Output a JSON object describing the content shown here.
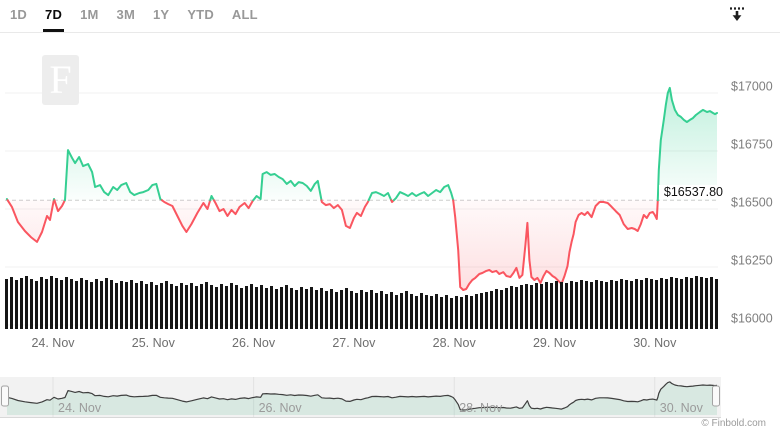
{
  "toolbar": {
    "ranges": [
      "1D",
      "7D",
      "1M",
      "3M",
      "1Y",
      "YTD",
      "ALL"
    ],
    "active_range": "7D",
    "active_index": 1
  },
  "branding": {
    "logo_letter": "F"
  },
  "footer": {
    "credit": "© Finbold.com"
  },
  "chart_data": {
    "type": "line",
    "current_price_label": "$16537.80",
    "threshold_price": 16537.8,
    "x_axis": {
      "tick_labels": [
        "24. Nov",
        "25. Nov",
        "26. Nov",
        "27. Nov",
        "28. Nov",
        "29. Nov",
        "30. Nov"
      ],
      "tick_positions_days": [
        0,
        1,
        2,
        3,
        4,
        5,
        6
      ],
      "range_days": [
        -0.48,
        6.63
      ]
    },
    "y_axis": {
      "tick_labels": [
        "$17000",
        "$16750",
        "$16500",
        "$16250",
        "$16000"
      ],
      "tick_values": [
        17000,
        16750,
        16500,
        16250,
        16000
      ],
      "range": [
        15980,
        17100
      ]
    },
    "series": {
      "name": "price",
      "points": [
        [
          -0.46,
          16543
        ],
        [
          -0.41,
          16509
        ],
        [
          -0.35,
          16444
        ],
        [
          -0.28,
          16405
        ],
        [
          -0.22,
          16379
        ],
        [
          -0.16,
          16358
        ],
        [
          -0.11,
          16401
        ],
        [
          -0.06,
          16470
        ],
        [
          -0.03,
          16453
        ],
        [
          0.01,
          16543
        ],
        [
          0.05,
          16491
        ],
        [
          0.09,
          16513
        ],
        [
          0.12,
          16539
        ],
        [
          0.15,
          16754
        ],
        [
          0.19,
          16720
        ],
        [
          0.22,
          16698
        ],
        [
          0.26,
          16724
        ],
        [
          0.3,
          16685
        ],
        [
          0.35,
          16694
        ],
        [
          0.39,
          16659
        ],
        [
          0.42,
          16595
        ],
        [
          0.47,
          16603
        ],
        [
          0.51,
          16573
        ],
        [
          0.55,
          16560
        ],
        [
          0.6,
          16595
        ],
        [
          0.64,
          16582
        ],
        [
          0.68,
          16603
        ],
        [
          0.73,
          16612
        ],
        [
          0.77,
          16573
        ],
        [
          0.81,
          16560
        ],
        [
          0.86,
          16569
        ],
        [
          0.9,
          16573
        ],
        [
          0.95,
          16582
        ],
        [
          0.99,
          16603
        ],
        [
          1.03,
          16608
        ],
        [
          1.07,
          16543
        ],
        [
          1.11,
          16530
        ],
        [
          1.15,
          16521
        ],
        [
          1.19,
          16513
        ],
        [
          1.24,
          16470
        ],
        [
          1.29,
          16427
        ],
        [
          1.33,
          16401
        ],
        [
          1.38,
          16435
        ],
        [
          1.44,
          16483
        ],
        [
          1.5,
          16526
        ],
        [
          1.54,
          16500
        ],
        [
          1.58,
          16556
        ],
        [
          1.62,
          16526
        ],
        [
          1.66,
          16491
        ],
        [
          1.7,
          16500
        ],
        [
          1.74,
          16470
        ],
        [
          1.78,
          16496
        ],
        [
          1.82,
          16478
        ],
        [
          1.86,
          16509
        ],
        [
          1.91,
          16526
        ],
        [
          1.95,
          16504
        ],
        [
          1.99,
          16534
        ],
        [
          2.03,
          16556
        ],
        [
          2.07,
          16543
        ],
        [
          2.09,
          16651
        ],
        [
          2.13,
          16659
        ],
        [
          2.17,
          16647
        ],
        [
          2.21,
          16651
        ],
        [
          2.25,
          16638
        ],
        [
          2.29,
          16629
        ],
        [
          2.33,
          16608
        ],
        [
          2.37,
          16621
        ],
        [
          2.41,
          16599
        ],
        [
          2.45,
          16616
        ],
        [
          2.49,
          16612
        ],
        [
          2.53,
          16599
        ],
        [
          2.57,
          16578
        ],
        [
          2.61,
          16608
        ],
        [
          2.64,
          16621
        ],
        [
          2.68,
          16530
        ],
        [
          2.72,
          16517
        ],
        [
          2.76,
          16521
        ],
        [
          2.8,
          16504
        ],
        [
          2.84,
          16517
        ],
        [
          2.88,
          16496
        ],
        [
          2.92,
          16427
        ],
        [
          2.96,
          16418
        ],
        [
          3.0,
          16461
        ],
        [
          3.03,
          16483
        ],
        [
          3.07,
          16470
        ],
        [
          3.11,
          16509
        ],
        [
          3.14,
          16530
        ],
        [
          3.18,
          16569
        ],
        [
          3.22,
          16573
        ],
        [
          3.26,
          16565
        ],
        [
          3.3,
          16556
        ],
        [
          3.34,
          16569
        ],
        [
          3.38,
          16530
        ],
        [
          3.42,
          16547
        ],
        [
          3.46,
          16573
        ],
        [
          3.5,
          16565
        ],
        [
          3.54,
          16556
        ],
        [
          3.58,
          16569
        ],
        [
          3.62,
          16556
        ],
        [
          3.66,
          16565
        ],
        [
          3.7,
          16573
        ],
        [
          3.74,
          16556
        ],
        [
          3.78,
          16569
        ],
        [
          3.82,
          16582
        ],
        [
          3.86,
          16573
        ],
        [
          3.9,
          16595
        ],
        [
          3.94,
          16603
        ],
        [
          3.97,
          16569
        ],
        [
          3.99,
          16539
        ],
        [
          4.01,
          16465
        ],
        [
          4.04,
          16323
        ],
        [
          4.06,
          16164
        ],
        [
          4.09,
          16151
        ],
        [
          4.12,
          16155
        ],
        [
          4.15,
          16177
        ],
        [
          4.18,
          16194
        ],
        [
          4.21,
          16203
        ],
        [
          4.25,
          16220
        ],
        [
          4.28,
          16224
        ],
        [
          4.32,
          16233
        ],
        [
          4.35,
          16237
        ],
        [
          4.38,
          16228
        ],
        [
          4.42,
          16233
        ],
        [
          4.45,
          16220
        ],
        [
          4.49,
          16228
        ],
        [
          4.52,
          16211
        ],
        [
          4.56,
          16207
        ],
        [
          4.59,
          16224
        ],
        [
          4.62,
          16246
        ],
        [
          4.65,
          16203
        ],
        [
          4.68,
          16216
        ],
        [
          4.71,
          16345
        ],
        [
          4.73,
          16440
        ],
        [
          4.75,
          16280
        ],
        [
          4.77,
          16207
        ],
        [
          4.8,
          16194
        ],
        [
          4.83,
          16203
        ],
        [
          4.86,
          16181
        ],
        [
          4.89,
          16211
        ],
        [
          4.92,
          16233
        ],
        [
          4.95,
          16224
        ],
        [
          4.98,
          16211
        ],
        [
          5.01,
          16203
        ],
        [
          5.04,
          16190
        ],
        [
          5.07,
          16177
        ],
        [
          5.1,
          16211
        ],
        [
          5.13,
          16254
        ],
        [
          5.15,
          16315
        ],
        [
          5.17,
          16358
        ],
        [
          5.19,
          16392
        ],
        [
          5.21,
          16444
        ],
        [
          5.24,
          16474
        ],
        [
          5.27,
          16483
        ],
        [
          5.3,
          16474
        ],
        [
          5.33,
          16487
        ],
        [
          5.37,
          16465
        ],
        [
          5.41,
          16513
        ],
        [
          5.45,
          16530
        ],
        [
          5.49,
          16530
        ],
        [
          5.53,
          16526
        ],
        [
          5.57,
          16509
        ],
        [
          5.61,
          16491
        ],
        [
          5.65,
          16474
        ],
        [
          5.69,
          16435
        ],
        [
          5.73,
          16414
        ],
        [
          5.77,
          16418
        ],
        [
          5.8,
          16414
        ],
        [
          5.83,
          16405
        ],
        [
          5.86,
          16435
        ],
        [
          5.89,
          16474
        ],
        [
          5.92,
          16461
        ],
        [
          5.95,
          16483
        ],
        [
          5.98,
          16487
        ],
        [
          6.0,
          16474
        ],
        [
          6.02,
          16457
        ],
        [
          6.03,
          16539
        ],
        [
          6.04,
          16668
        ],
        [
          6.06,
          16797
        ],
        [
          6.09,
          16884
        ],
        [
          6.11,
          16948
        ],
        [
          6.13,
          17000
        ],
        [
          6.15,
          17022
        ],
        [
          6.17,
          16970
        ],
        [
          6.2,
          16927
        ],
        [
          6.23,
          16905
        ],
        [
          6.26,
          16897
        ],
        [
          6.29,
          16884
        ],
        [
          6.32,
          16875
        ],
        [
          6.35,
          16884
        ],
        [
          6.38,
          16892
        ],
        [
          6.41,
          16905
        ],
        [
          6.45,
          16918
        ],
        [
          6.48,
          16927
        ],
        [
          6.52,
          16918
        ],
        [
          6.55,
          16922
        ],
        [
          6.58,
          16914
        ],
        [
          6.6,
          16909
        ],
        [
          6.62,
          16914
        ]
      ]
    },
    "volume": {
      "bars": [
        50,
        52,
        49,
        51,
        53,
        50,
        48,
        52,
        50,
        53,
        51,
        49,
        52,
        50,
        48,
        51,
        49,
        47,
        50,
        48,
        51,
        49,
        46,
        48,
        47,
        49,
        46,
        48,
        45,
        47,
        44,
        46,
        48,
        45,
        43,
        46,
        44,
        46,
        43,
        45,
        47,
        44,
        42,
        45,
        43,
        46,
        44,
        41,
        43,
        45,
        42,
        44,
        41,
        43,
        40,
        42,
        44,
        41,
        39,
        42,
        40,
        42,
        39,
        41,
        38,
        40,
        37,
        39,
        41,
        38,
        36,
        39,
        37,
        39,
        36,
        38,
        35,
        37,
        34,
        36,
        38,
        35,
        33,
        36,
        34,
        33,
        35,
        32,
        34,
        31,
        33,
        32,
        34,
        33,
        35,
        36,
        37,
        38,
        40,
        39,
        41,
        43,
        42,
        44,
        45,
        44,
        46,
        45,
        47,
        46,
        48,
        47,
        46,
        48,
        47,
        49,
        48,
        47,
        49,
        48,
        47,
        49,
        48,
        50,
        49,
        48,
        50,
        49,
        51,
        50,
        49,
        51,
        50,
        52,
        51,
        50,
        52,
        51,
        53,
        52,
        51,
        52,
        50
      ]
    },
    "navigator": {
      "tick_labels": [
        "24. Nov",
        "26. Nov",
        "28. Nov",
        "30. Nov"
      ],
      "tick_positions_days": [
        0,
        2,
        4,
        6
      ]
    },
    "colors": {
      "up": "#35cf92",
      "down": "#fa5660",
      "volume": "#161616",
      "grid": "#f0f0f0",
      "threshold_line": "#cdcdcd",
      "axis_label": "#7e7e7e",
      "x_label": "#6e6e6e",
      "nav_line": "#3f3f3f",
      "nav_bg": "#f2f2f2",
      "nav_label": "#9b9b9b"
    }
  }
}
